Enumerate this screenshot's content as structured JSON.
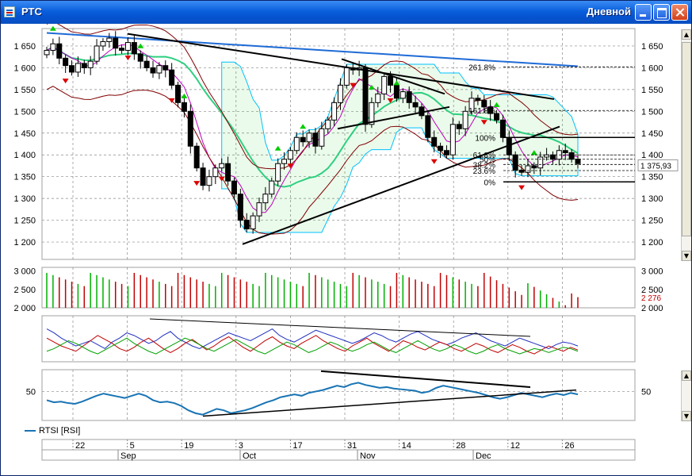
{
  "window": {
    "title": "РТС",
    "mode": "Дневной"
  },
  "colors": {
    "up_candle": "#ffffff",
    "down_candle": "#000000",
    "volume_up": "#00b000",
    "volume_down": "#c00000",
    "ma_long": "#1f6bd6",
    "ma_mid": "#2fcf80",
    "ma_fast": "#c000c0",
    "band": "#800000",
    "cloud": "#00c0ff",
    "fractal_up": "#00cc00",
    "fractal_down": "#dd0000"
  },
  "legend": {
    "label": "RTSI [RSI]"
  },
  "chart_data": [
    {
      "type": "candlestick",
      "panel": "price",
      "ylim": [
        1160,
        1690
      ],
      "yticks": [
        "1 650",
        "1 600",
        "1 550",
        "1 500",
        "1 450",
        "1 400",
        "1 350",
        "1 300",
        "1 250",
        "1 200"
      ],
      "last_price_label": "1 375,93",
      "fib_levels": [
        {
          "label": "261.8%",
          "value": 1602
        },
        {
          "label": "161.8%",
          "value": 1502
        },
        {
          "label": "100%",
          "value": 1440
        },
        {
          "label": "61.8%",
          "value": 1400
        },
        {
          "label": "50%",
          "value": 1390
        },
        {
          "label": "38.2%",
          "value": 1378
        },
        {
          "label": "23.6%",
          "value": 1364
        },
        {
          "label": "0%",
          "value": 1338
        }
      ],
      "close": [
        1640,
        1655,
        1622,
        1605,
        1590,
        1610,
        1600,
        1615,
        1650,
        1660,
        1668,
        1645,
        1640,
        1658,
        1632,
        1615,
        1600,
        1588,
        1605,
        1595,
        1560,
        1520,
        1500,
        1420,
        1370,
        1330,
        1350,
        1370,
        1380,
        1340,
        1310,
        1250,
        1230,
        1260,
        1290,
        1310,
        1340,
        1380,
        1390,
        1410,
        1440,
        1430,
        1450,
        1420,
        1460,
        1480,
        1520,
        1560,
        1600,
        1595,
        1600,
        1470,
        1520,
        1540,
        1580,
        1560,
        1530,
        1545,
        1520,
        1510,
        1490,
        1440,
        1420,
        1410,
        1400,
        1470,
        1460,
        1500,
        1530,
        1525,
        1510,
        1495,
        1480,
        1440,
        1400,
        1365,
        1360,
        1375,
        1370,
        1395,
        1400,
        1390,
        1410,
        1405,
        1390,
        1380
      ],
      "fractals_up_x": [
        1,
        15,
        22,
        37,
        41,
        52,
        56,
        72,
        78
      ],
      "fractals_down_x": [
        3,
        13,
        20,
        24,
        28,
        39,
        49,
        55,
        62,
        70,
        76
      ],
      "trendlines_desc": "resistance from Sep high to late Dec; support from Oct low to Dec"
    },
    {
      "type": "bar",
      "panel": "volume",
      "ylim": [
        2000,
        3100
      ],
      "yticks": [
        "3 000",
        "2 500",
        "2 000"
      ],
      "last_label": "2 276"
    },
    {
      "type": "line",
      "panel": "oscillator",
      "series": [
        {
          "color": "#2030c0",
          "values": [
            55,
            52,
            48,
            45,
            42,
            44,
            46,
            43,
            40,
            45,
            48,
            52,
            50,
            47,
            44,
            46,
            50,
            53,
            48,
            45,
            42,
            40,
            43,
            46,
            49,
            52,
            50,
            48,
            46,
            49,
            52,
            55,
            50,
            47,
            45,
            48,
            51,
            54,
            52,
            50,
            48,
            46,
            44,
            46,
            49,
            52,
            50,
            47,
            45,
            48,
            51,
            53,
            50,
            47,
            45,
            43,
            45,
            48,
            50,
            52,
            49,
            46,
            44,
            42,
            45,
            48,
            46,
            44,
            42,
            40,
            43,
            45,
            44,
            42
          ]
        },
        {
          "color": "#c00000",
          "values": [
            48,
            45,
            42,
            40,
            38,
            42,
            46,
            50,
            47,
            44,
            40,
            38,
            41,
            45,
            48,
            44,
            40,
            37,
            40,
            44,
            47,
            43,
            39,
            42,
            46,
            49,
            45,
            41,
            38,
            42,
            46,
            49,
            45,
            42,
            40,
            44,
            47,
            50,
            46,
            43,
            40,
            38,
            42,
            45,
            48,
            44,
            41,
            38,
            42,
            46,
            44,
            41,
            39,
            42,
            45,
            43,
            40,
            38,
            41,
            44,
            42,
            39,
            37,
            40,
            43,
            41,
            38,
            36,
            39,
            42,
            40,
            38,
            41,
            39
          ]
        },
        {
          "color": "#00a000",
          "values": [
            38,
            40,
            43,
            46,
            44,
            41,
            38,
            36,
            39,
            42,
            45,
            48,
            44,
            41,
            38,
            36,
            39,
            42,
            45,
            48,
            46,
            43,
            40,
            38,
            41,
            44,
            47,
            44,
            41,
            38,
            36,
            39,
            42,
            45,
            43,
            40,
            37,
            39,
            42,
            45,
            43,
            40,
            38,
            40,
            43,
            45,
            42,
            39,
            37,
            40,
            43,
            46,
            43,
            40,
            38,
            40,
            43,
            41,
            38,
            36,
            38,
            41,
            43,
            40,
            38,
            36,
            38,
            40,
            39,
            37,
            39,
            41,
            40,
            38
          ]
        }
      ],
      "trendlines_desc": "descending line across peaks"
    },
    {
      "type": "line",
      "panel": "RSI",
      "series": [
        {
          "name": "RTSI [RSI]",
          "values": [
            38,
            35,
            36,
            34,
            33,
            36,
            40,
            44,
            47,
            45,
            43,
            41,
            44,
            47,
            44,
            38,
            35,
            36,
            34,
            30,
            24,
            20,
            18,
            22,
            26,
            24,
            20,
            22,
            24,
            27,
            31,
            35,
            38,
            42,
            44,
            46,
            44,
            48,
            50,
            52,
            55,
            58,
            56,
            60,
            62,
            59,
            57,
            55,
            56,
            54,
            53,
            52,
            51,
            48,
            50,
            55,
            58,
            56,
            54,
            52,
            50,
            48,
            45,
            42,
            40,
            42,
            45,
            48,
            46,
            44,
            42,
            45,
            47,
            45,
            48,
            46
          ]
        }
      ],
      "yticks": [
        "50"
      ],
      "ylim": [
        10,
        80
      ]
    }
  ],
  "x_axis": {
    "day_labels": [
      "22",
      "5",
      "19",
      "3",
      "17",
      "31",
      "14",
      "28",
      "12",
      "26"
    ],
    "month_labels": [
      "Sep",
      "Oct",
      "Nov",
      "Dec"
    ]
  }
}
